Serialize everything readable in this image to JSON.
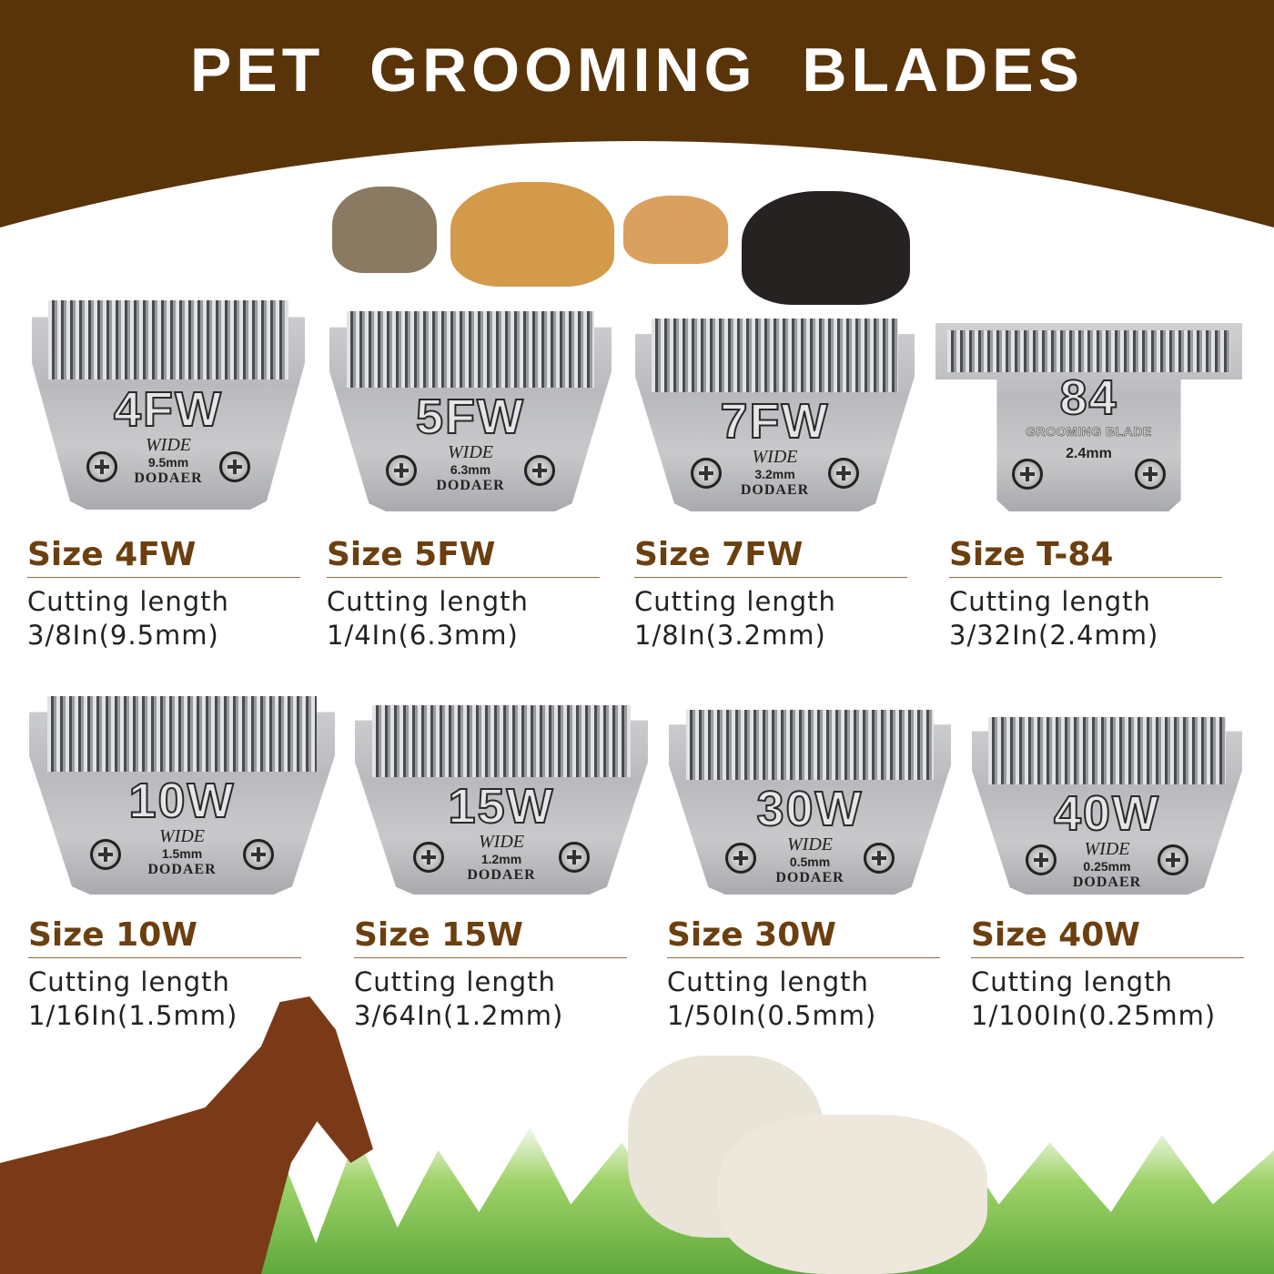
{
  "title": "PET GROOMING BLADES",
  "colors": {
    "banner": "#5a3409",
    "size_label": "#6b3f0f",
    "text": "#222222"
  },
  "blades": [
    {
      "code": "4FW",
      "wide": "WIDE",
      "mm": "9.5mm",
      "brand": "DODAER",
      "size": "Size 4FW",
      "cutting": "Cutting length",
      "length": "3/8In(9.5mm)"
    },
    {
      "code": "5FW",
      "wide": "WIDE",
      "mm": "6.3mm",
      "brand": "DODAER",
      "size": "Size 5FW",
      "cutting": "Cutting length",
      "length": "1/4In(6.3mm)"
    },
    {
      "code": "7FW",
      "wide": "WIDE",
      "mm": "3.2mm",
      "brand": "DODAER",
      "size": "Size 7FW",
      "cutting": "Cutting length",
      "length": "1/8In(3.2mm)"
    },
    {
      "code": "84",
      "subtitle": "GROOMING BLADE",
      "mm": "2.4mm",
      "size": "Size T-84",
      "cutting": "Cutting length",
      "length": "3/32In(2.4mm)"
    },
    {
      "code": "10W",
      "wide": "WIDE",
      "mm": "1.5mm",
      "brand": "DODAER",
      "size": "Size 10W",
      "cutting": "Cutting length",
      "length": "1/16In(1.5mm)"
    },
    {
      "code": "15W",
      "wide": "WIDE",
      "mm": "1.2mm",
      "brand": "DODAER",
      "size": "Size 15W",
      "cutting": "Cutting length",
      "length": "3/64In(1.2mm)"
    },
    {
      "code": "30W",
      "wide": "WIDE",
      "mm": "0.5mm",
      "brand": "DODAER",
      "size": "Size 30W",
      "cutting": "Cutting length",
      "length": "1/50In(0.5mm)"
    },
    {
      "code": "40W",
      "wide": "WIDE",
      "mm": "0.25mm",
      "brand": "DODAER",
      "size": "Size 40W",
      "cutting": "Cutting length",
      "length": "1/100In(0.25mm)"
    }
  ]
}
